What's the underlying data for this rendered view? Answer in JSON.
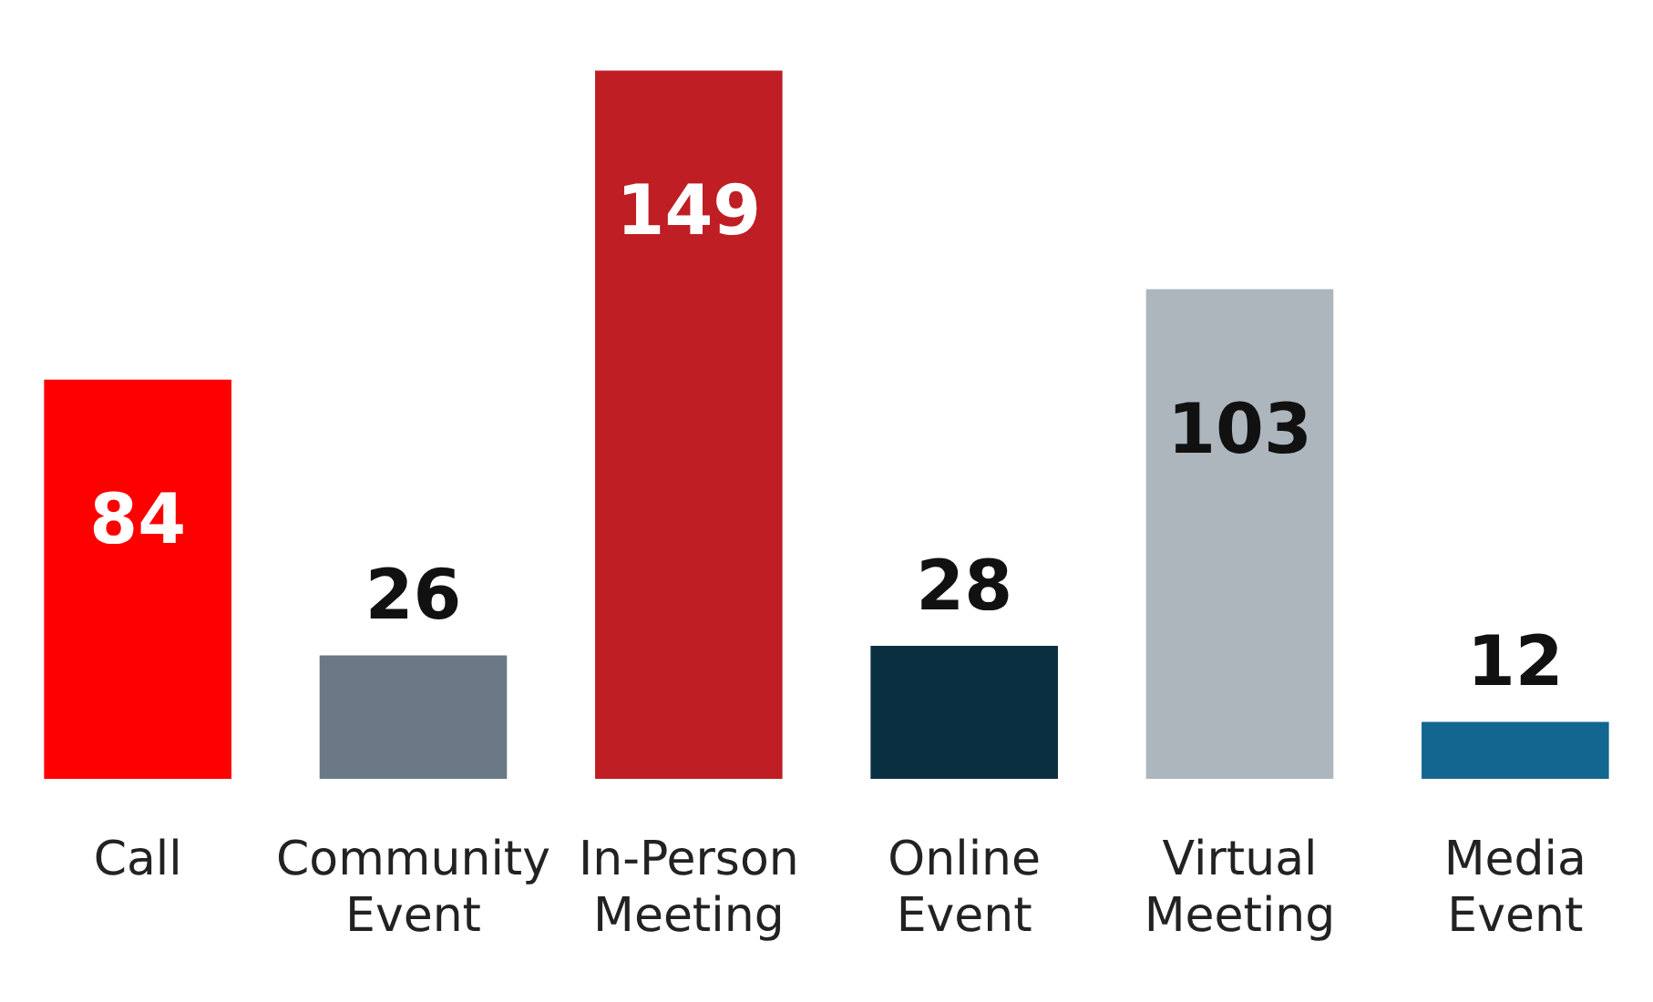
{
  "chart_data": {
    "type": "bar",
    "categories": [
      "Call",
      "Community Event",
      "In-Person Meeting",
      "Online Event",
      "Virtual Meeting",
      "Media Event"
    ],
    "values": [
      84,
      26,
      149,
      28,
      103,
      12
    ],
    "colors": [
      "#fe0000",
      "#6b7886",
      "#be1e24",
      "#0a2f40",
      "#adb5bd",
      "#13668f"
    ],
    "data_labels": true,
    "grid": false,
    "legend": false,
    "tick_labels": "x"
  }
}
